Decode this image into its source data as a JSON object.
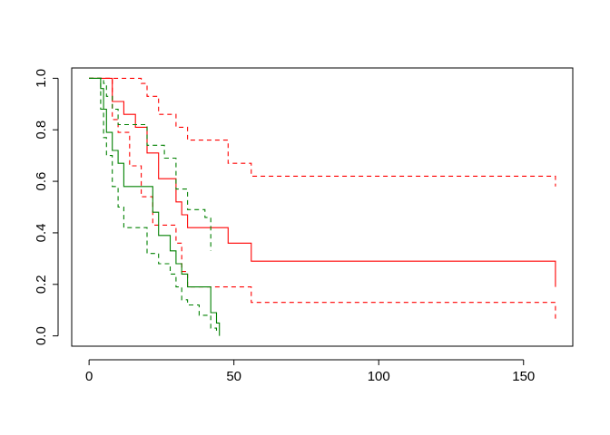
{
  "chart_data": {
    "type": "line",
    "title": "",
    "xlabel": "",
    "ylabel": "",
    "xlim": [
      -6,
      167
    ],
    "ylim": [
      -0.04,
      1.04
    ],
    "xticks": [
      0,
      50,
      100,
      150
    ],
    "xtick_labels": [
      "0",
      "50",
      "100",
      "150"
    ],
    "yticks": [
      0.0,
      0.2,
      0.4,
      0.6,
      0.8,
      1.0
    ],
    "ytick_labels": [
      "0.0",
      "0.2",
      "0.4",
      "0.6",
      "0.8",
      "1.0"
    ],
    "grid": false,
    "legend": "none",
    "step": true,
    "series": [
      {
        "color": "#ff0000",
        "dash": false,
        "x": [
          0,
          8,
          12,
          16,
          20,
          24,
          30,
          32,
          34,
          48,
          56,
          161
        ],
        "y": [
          1.0,
          0.91,
          0.86,
          0.81,
          0.71,
          0.61,
          0.52,
          0.47,
          0.42,
          0.36,
          0.29,
          0.19
        ]
      },
      {
        "color": "#ff0000",
        "dash": true,
        "x": [
          0,
          18,
          20,
          24,
          30,
          34,
          48,
          56,
          161
        ],
        "y": [
          1.0,
          0.98,
          0.93,
          0.86,
          0.81,
          0.76,
          0.67,
          0.62,
          0.58
        ]
      },
      {
        "color": "#ff0000",
        "dash": true,
        "x": [
          0,
          8,
          10,
          14,
          18,
          22,
          30,
          32,
          34,
          48,
          56,
          161
        ],
        "y": [
          1.0,
          0.84,
          0.79,
          0.66,
          0.54,
          0.43,
          0.36,
          0.25,
          0.19,
          0.19,
          0.13,
          0.06
        ]
      },
      {
        "color": "#008000",
        "dash": false,
        "x": [
          0,
          4,
          5,
          6,
          8,
          10,
          12,
          22,
          24,
          28,
          30,
          32,
          34,
          38,
          42,
          44,
          45
        ],
        "y": [
          1.0,
          0.96,
          0.88,
          0.79,
          0.72,
          0.67,
          0.58,
          0.48,
          0.39,
          0.33,
          0.28,
          0.24,
          0.19,
          0.19,
          0.09,
          0.05,
          0.0
        ]
      },
      {
        "color": "#008000",
        "dash": true,
        "x": [
          0,
          5,
          6,
          8,
          10,
          16,
          20,
          26,
          30,
          34,
          40,
          42
        ],
        "y": [
          1.0,
          0.98,
          0.93,
          0.88,
          0.82,
          0.82,
          0.74,
          0.69,
          0.57,
          0.49,
          0.46,
          0.33
        ]
      },
      {
        "color": "#008000",
        "dash": true,
        "x": [
          0,
          4,
          5,
          6,
          8,
          10,
          12,
          20,
          24,
          28,
          30,
          32,
          34,
          38,
          42,
          44
        ],
        "y": [
          1.0,
          0.88,
          0.77,
          0.7,
          0.58,
          0.5,
          0.42,
          0.32,
          0.28,
          0.24,
          0.19,
          0.14,
          0.12,
          0.08,
          0.03,
          0.02
        ]
      }
    ]
  }
}
